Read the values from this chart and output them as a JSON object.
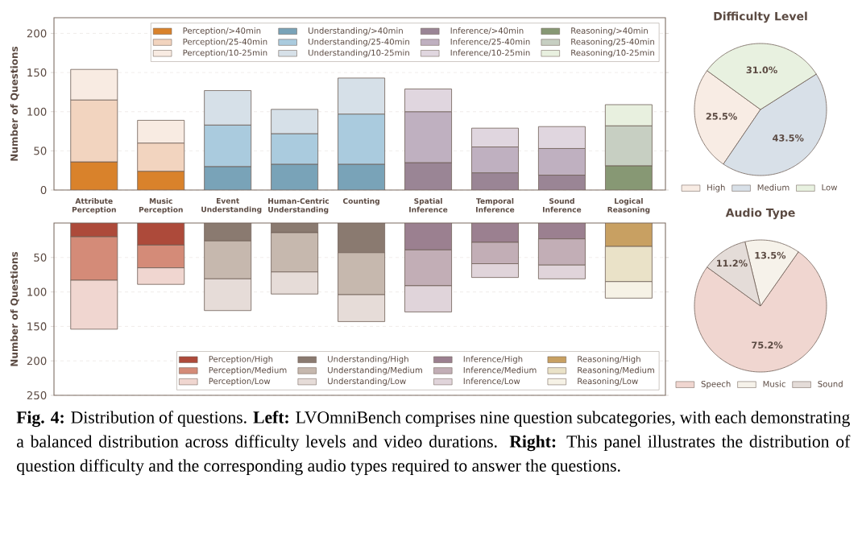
{
  "chart_data": [
    {
      "type": "bar",
      "stacked": true,
      "ylabel": "Number of Questions",
      "categories": [
        "Attribute Perception",
        "Music Perception",
        "Event Understanding",
        "Human-Centric Understanding",
        "Counting",
        "Spatial Inference",
        "Temporal Inference",
        "Sound Inference",
        "Logical Reasoning"
      ],
      "ylim": [
        0,
        220
      ],
      "yticks": [
        0,
        50,
        100,
        150,
        200
      ],
      "grid": "y",
      "legend": "top right",
      "series": [
        {
          "name": "Perception/>40min",
          "color": "#d9822b",
          "values": [
            36,
            24,
            null,
            null,
            null,
            null,
            null,
            null,
            null
          ]
        },
        {
          "name": "Perception/25-40min",
          "color": "#f2d4bf",
          "values": [
            79,
            36,
            null,
            null,
            null,
            null,
            null,
            null,
            null
          ]
        },
        {
          "name": "Perception/10-25min",
          "color": "#f8ebe2",
          "values": [
            39,
            29,
            null,
            null,
            null,
            null,
            null,
            null,
            null
          ]
        },
        {
          "name": "Understanding/>40min",
          "color": "#79a3b8",
          "values": [
            null,
            null,
            30,
            33,
            33,
            null,
            null,
            null,
            null
          ]
        },
        {
          "name": "Understanding/25-40min",
          "color": "#aacbde",
          "values": [
            null,
            null,
            53,
            39,
            64,
            null,
            null,
            null,
            null
          ]
        },
        {
          "name": "Understanding/10-25min",
          "color": "#d6e0e8",
          "values": [
            null,
            null,
            44,
            31,
            46,
            null,
            null,
            null,
            null
          ]
        },
        {
          "name": "Inference/>40min",
          "color": "#9a8595",
          "values": [
            null,
            null,
            null,
            null,
            null,
            35,
            22,
            19,
            null
          ]
        },
        {
          "name": "Inference/25-40min",
          "color": "#bfb0c0",
          "values": [
            null,
            null,
            null,
            null,
            null,
            65,
            33,
            34,
            null
          ]
        },
        {
          "name": "Inference/10-25min",
          "color": "#e0d6df",
          "values": [
            null,
            null,
            null,
            null,
            null,
            29,
            24,
            28,
            null
          ]
        },
        {
          "name": "Reasoning/>40min",
          "color": "#879874",
          "values": [
            null,
            null,
            null,
            null,
            null,
            null,
            null,
            null,
            31
          ]
        },
        {
          "name": "Reasoning/25-40min",
          "color": "#c7cfc2",
          "values": [
            null,
            null,
            null,
            null,
            null,
            null,
            null,
            null,
            51
          ]
        },
        {
          "name": "Reasoning/10-25min",
          "color": "#e8f0df",
          "values": [
            null,
            null,
            null,
            null,
            null,
            null,
            null,
            null,
            27
          ]
        }
      ],
      "annotations": [
        "**Fig. 4:** Distribution of questions. **Left:** LVOmniBench comprises nine question subcategories, with each demonstrating a balanced distribution across difficulty levels and video durations. **Right:** This panel illustrates the distribution of question difficulty and the corresponding audio types required to answer the questions."
      ]
    },
    {
      "type": "bar",
      "stacked": true,
      "ylabel": "Number of Questions",
      "categories": [
        null,
        null,
        null,
        null,
        null,
        null,
        null,
        null,
        null
      ],
      "ylim": [
        250,
        0
      ],
      "yticks": [
        50,
        100,
        150,
        200,
        250
      ],
      "grid": "y",
      "legend": "bottom right",
      "tick_labels": "y",
      "series": [
        {
          "name": "Perception/High",
          "color": "#ad4a3a",
          "values": [
            20,
            32,
            null,
            null,
            null,
            null,
            null,
            null,
            null
          ]
        },
        {
          "name": "Perception/Medium",
          "color": "#d48b78",
          "values": [
            63,
            33,
            null,
            null,
            null,
            null,
            null,
            null,
            null
          ]
        },
        {
          "name": "Perception/Low",
          "color": "#f0d6d0",
          "values": [
            71,
            24,
            null,
            null,
            null,
            null,
            null,
            null,
            null
          ]
        },
        {
          "name": "Understanding/High",
          "color": "#8a7a70",
          "values": [
            null,
            null,
            26,
            14,
            43,
            null,
            null,
            null,
            null
          ]
        },
        {
          "name": "Understanding/Medium",
          "color": "#c6b8ae",
          "values": [
            null,
            null,
            55,
            57,
            61,
            null,
            null,
            null,
            null
          ]
        },
        {
          "name": "Understanding/Low",
          "color": "#e6dcd8",
          "values": [
            null,
            null,
            46,
            32,
            39,
            null,
            null,
            null,
            null
          ]
        },
        {
          "name": "Inference/High",
          "color": "#9b8090",
          "values": [
            null,
            null,
            null,
            null,
            null,
            39,
            28,
            23,
            null
          ]
        },
        {
          "name": "Inference/Medium",
          "color": "#c2aeb6",
          "values": [
            null,
            null,
            null,
            null,
            null,
            52,
            31,
            38,
            null
          ]
        },
        {
          "name": "Inference/Low",
          "color": "#e0d4da",
          "values": [
            null,
            null,
            null,
            null,
            null,
            38,
            20,
            20,
            null
          ]
        },
        {
          "name": "Reasoning/High",
          "color": "#c8a062",
          "values": [
            null,
            null,
            null,
            null,
            null,
            null,
            null,
            null,
            34
          ]
        },
        {
          "name": "Reasoning/Medium",
          "color": "#eae2c8",
          "values": [
            null,
            null,
            null,
            null,
            null,
            null,
            null,
            null,
            51
          ]
        },
        {
          "name": "Reasoning/Low",
          "color": "#f6f2e6",
          "values": [
            null,
            null,
            null,
            null,
            null,
            null,
            null,
            null,
            24
          ]
        }
      ]
    },
    {
      "type": "pie",
      "title": "Difficulty Level",
      "categories": [
        "High",
        "Medium",
        "Low"
      ],
      "values": [
        25.5,
        43.5,
        31.0
      ],
      "value_labels": [
        "25.5%",
        "43.5%",
        "31.0%"
      ],
      "colors": [
        "#f8ece4",
        "#d8e0e8",
        "#e8f1e0"
      ],
      "legend": "bottom"
    },
    {
      "type": "pie",
      "title": "Audio Type",
      "categories": [
        "Speech",
        "Music",
        "Sound"
      ],
      "values": [
        75.2,
        13.5,
        11.2
      ],
      "value_labels": [
        "75.2%",
        "13.5%",
        "11.2%"
      ],
      "colors": [
        "#f0d6d0",
        "#f6f2ea",
        "#e4dcd8"
      ],
      "legend": "bottom"
    }
  ]
}
